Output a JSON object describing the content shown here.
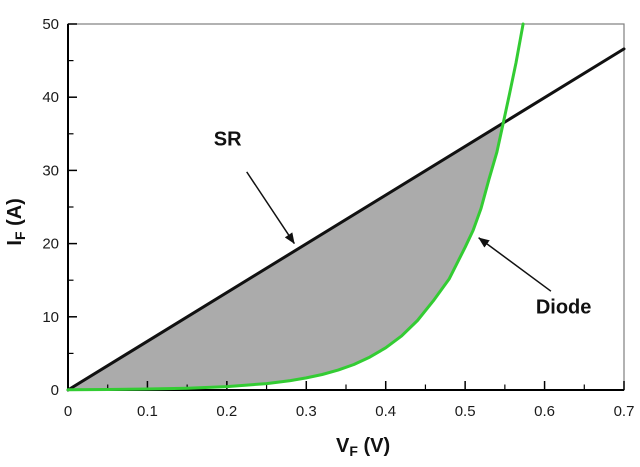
{
  "chart_data": {
    "type": "line",
    "title": "",
    "xlabel": {
      "base": "V",
      "sub": "F",
      "unit": " (V)"
    },
    "ylabel": {
      "base": "I",
      "sub": "F",
      "unit": " (A)"
    },
    "xlim": [
      0,
      0.7
    ],
    "ylim": [
      0,
      50
    ],
    "x_major_ticks": [
      0,
      0.1,
      0.2,
      0.3,
      0.4,
      0.5,
      0.6,
      0.7
    ],
    "x_tick_labels": [
      "0",
      "0.1",
      "0.2",
      "0.3",
      "0.4",
      "0.5",
      "0.6",
      "0.7"
    ],
    "x_minor_ticks": [
      0.05,
      0.15,
      0.25,
      0.35,
      0.45,
      0.55,
      0.65
    ],
    "y_major_ticks": [
      0,
      10,
      20,
      30,
      40,
      50
    ],
    "y_tick_labels": [
      "0",
      "10",
      "20",
      "30",
      "40",
      "50"
    ],
    "y_minor_ticks": [
      5,
      15,
      25,
      35,
      45
    ],
    "grid": false,
    "legend": "none",
    "colors": {
      "sr_line": "#111111",
      "diode_curve": "#33cc33",
      "shaded_region": "#ababab",
      "axis": "#000000",
      "plot_border": "#7f7f7f",
      "background": "#ffffff"
    },
    "series": [
      {
        "name": "SR",
        "color": "#111111",
        "width": 3,
        "x": [
          0,
          0.7
        ],
        "y": [
          0,
          46.6
        ]
      },
      {
        "name": "Diode",
        "color": "#33cc33",
        "width": 3,
        "x": [
          0,
          0.05,
          0.1,
          0.15,
          0.2,
          0.25,
          0.28,
          0.3,
          0.32,
          0.34,
          0.36,
          0.38,
          0.4,
          0.42,
          0.44,
          0.46,
          0.48,
          0.5,
          0.51,
          0.52,
          0.53,
          0.54,
          0.548,
          0.556,
          0.564,
          0.573
        ],
        "y": [
          0.04,
          0.07,
          0.14,
          0.25,
          0.47,
          0.88,
          1.28,
          1.65,
          2.12,
          2.72,
          3.49,
          4.49,
          5.76,
          7.39,
          9.49,
          12.2,
          15.2,
          19.5,
          21.8,
          24.8,
          28.8,
          32.5,
          36.5,
          40.5,
          44.7,
          50
        ]
      }
    ],
    "intersection": {
      "x": 0.548,
      "y": 36.5
    },
    "shaded_region": {
      "color": "#ababab",
      "between": [
        "SR",
        "Diode"
      ],
      "x_range": [
        0,
        0.548
      ]
    },
    "annotations": [
      {
        "text": "SR",
        "text_pos": [
          0.201,
          34.2
        ],
        "arrow_from": [
          0.225,
          29.8
        ],
        "arrow_to": [
          0.285,
          20.0
        ]
      },
      {
        "text": "Diode",
        "text_pos": [
          0.624,
          11.2
        ],
        "arrow_from": [
          0.608,
          13.5
        ],
        "arrow_to": [
          0.517,
          20.8
        ]
      }
    ]
  }
}
